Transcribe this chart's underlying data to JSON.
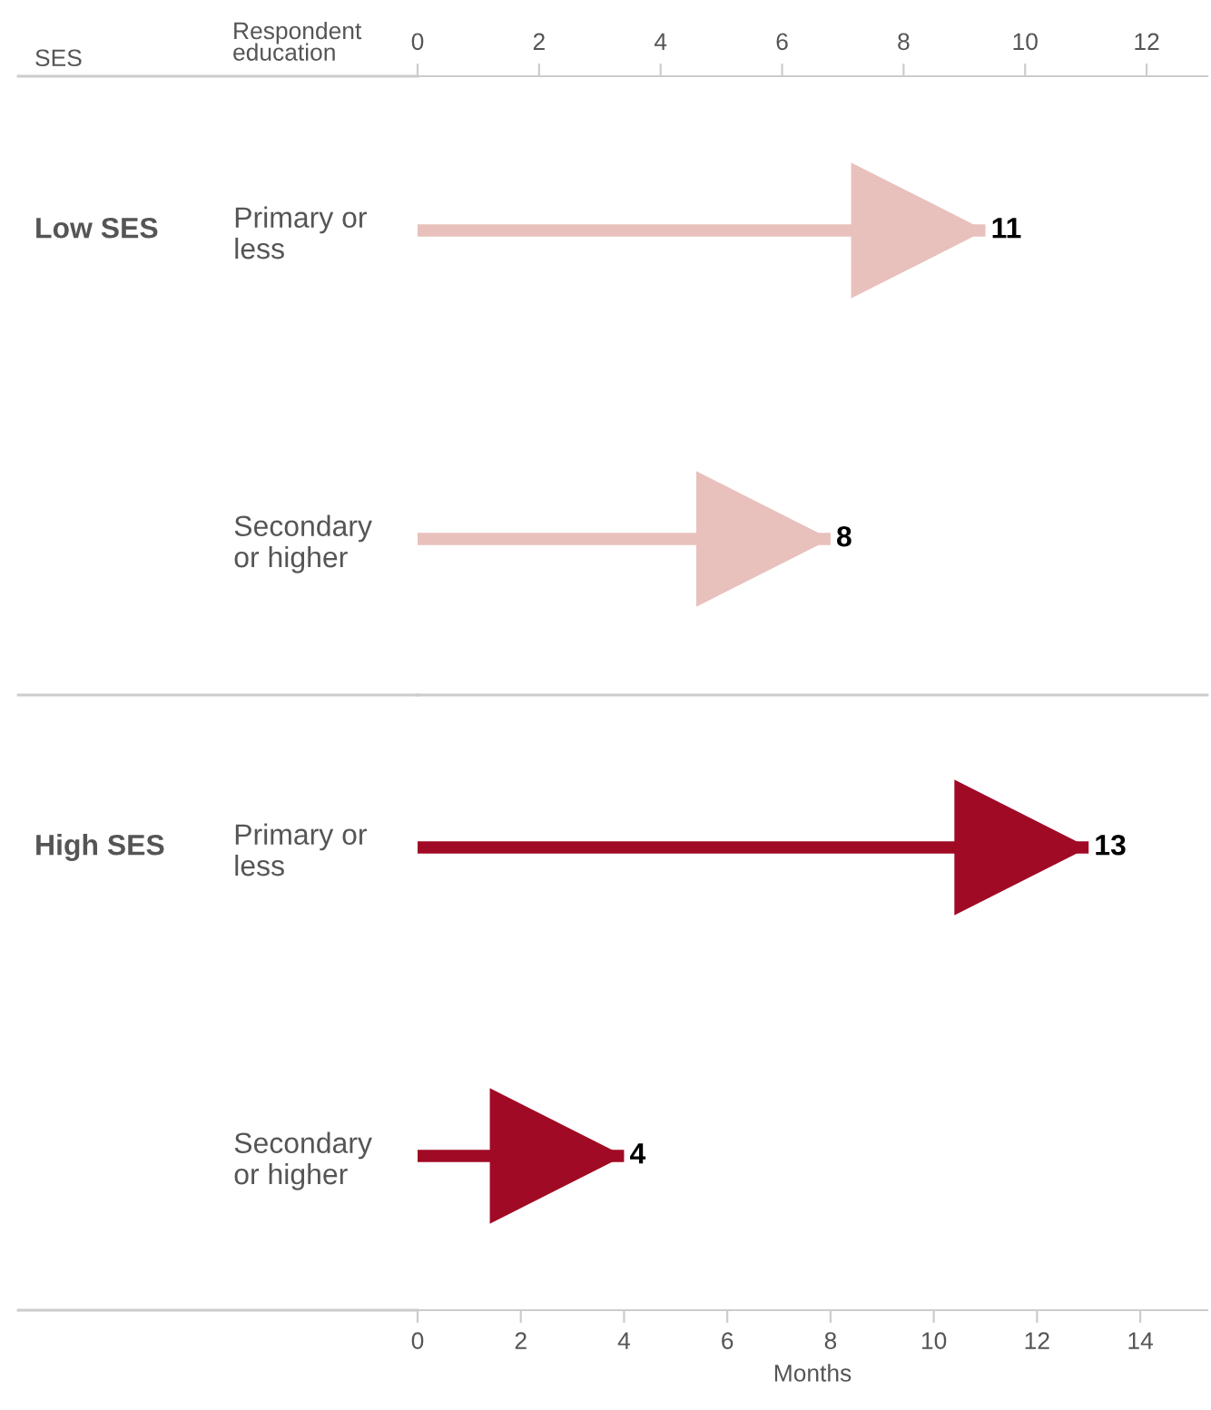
{
  "chart_data": {
    "type": "bar",
    "orientation": "horizontal",
    "categories": [
      "Primary or\nless",
      "Secondary\nor higher",
      "Primary or\nless",
      "Secondary\nor higher"
    ],
    "values": [
      11,
      8,
      13,
      4
    ],
    "colors": [
      "#e8c0bc",
      "#e8c0bc",
      "#a00a25",
      "#a00a25"
    ],
    "data_labels": true,
    "xlabel": "Months",
    "xlim": [
      0,
      15.3
    ],
    "xticks": [
      0,
      2,
      4,
      6,
      8,
      10,
      12,
      14
    ],
    "x2lim": [
      0,
      13
    ],
    "x2ticks": [
      0,
      2,
      4,
      6,
      8,
      10,
      12
    ],
    "annotations": [
      "SES",
      "Respondent\neducation",
      "Low SES",
      "High SES"
    ]
  }
}
